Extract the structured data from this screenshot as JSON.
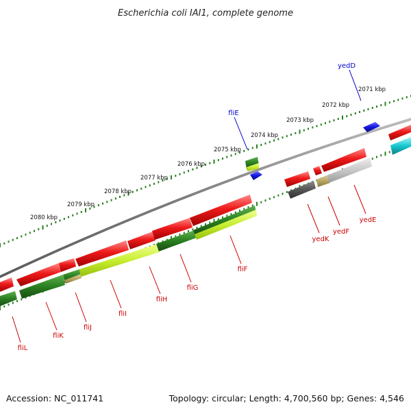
{
  "title": "Escherichia coli IAI1, complete genome",
  "footer": {
    "accession": "Accession: NC_011741",
    "topology": "Topology: circular; Length: 4,700,560 bp; Genes: 4,546"
  },
  "colors": {
    "forward_cds": "#e01010",
    "reverse_cds": "#e01010",
    "reverse_gene_dark": "#2a7f20",
    "reverse_gene_light": "#ccf040",
    "gene_blue": "#1515e0",
    "gene_cyan": "#18c8d0",
    "gene_grey": "#555555",
    "gene_silver": "#c8c8c8",
    "gene_khaki": "#b8a860",
    "ruler_tick": "#2a7f20",
    "backbone": "#888888",
    "label_forward": "#0000cc",
    "label_reverse": "#cc0000"
  },
  "ruler": {
    "unit": "kbp",
    "ticks": [
      "2080 kbp",
      "2079 kbp",
      "2078 kbp",
      "2077 kbp",
      "2076 kbp",
      "2075 kbp",
      "2074 kbp",
      "2073 kbp",
      "2072 kbp",
      "2071 kbp"
    ]
  },
  "genes": {
    "forward": [
      "yedD",
      "fliE"
    ],
    "reverse": [
      "fliL",
      "fliK",
      "fliJ",
      "fliI",
      "fliH",
      "fliG",
      "fliF",
      "yedK",
      "yedF",
      "yedE"
    ]
  }
}
